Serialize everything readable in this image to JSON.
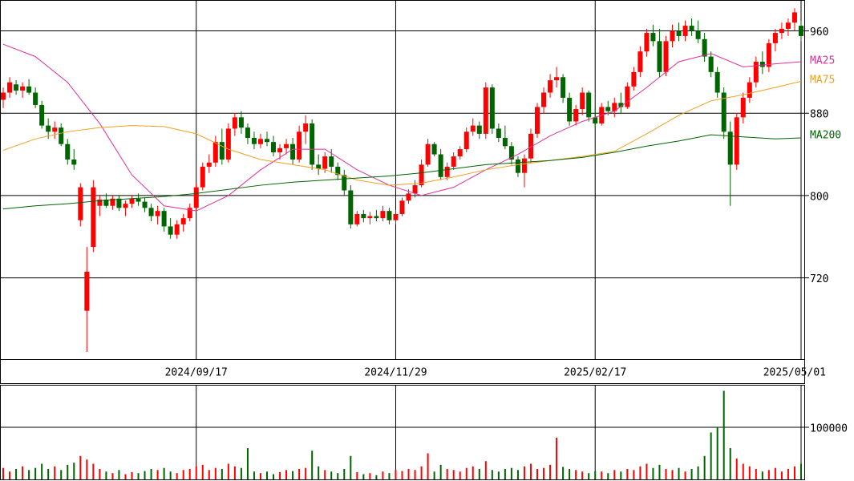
{
  "chart_data": [
    {
      "type": "candlestick",
      "up_color": "#ff0000",
      "down_color": "#006400",
      "xlim": [
        -0.5,
        124.5
      ],
      "xticks": [
        {
          "value": 30,
          "label": "2024/09/17"
        },
        {
          "value": 61,
          "label": "2024/11/29"
        },
        {
          "value": 92,
          "label": "2025/02/17"
        },
        {
          "value": 124,
          "label": "2025/05/01"
        }
      ],
      "ylim": [
        641,
        990
      ],
      "yticks": [
        720,
        800,
        880,
        960
      ],
      "grid": true,
      "ohlc": [
        [
          893,
          905,
          885,
          900
        ],
        [
          900,
          915,
          895,
          910
        ],
        [
          908,
          912,
          898,
          902
        ],
        [
          902,
          910,
          895,
          906
        ],
        [
          906,
          913,
          898,
          900
        ],
        [
          900,
          905,
          885,
          888
        ],
        [
          888,
          892,
          865,
          868
        ],
        [
          868,
          875,
          855,
          862
        ],
        [
          862,
          872,
          855,
          866
        ],
        [
          866,
          870,
          848,
          850
        ],
        [
          850,
          855,
          830,
          835
        ],
        [
          835,
          845,
          825,
          830
        ],
        [
          776,
          812,
          770,
          808
        ],
        [
          688,
          750,
          648,
          726
        ],
        [
          750,
          815,
          745,
          808
        ],
        [
          790,
          800,
          780,
          796
        ],
        [
          796,
          802,
          788,
          790
        ],
        [
          790,
          800,
          786,
          797
        ],
        [
          797,
          800,
          785,
          788
        ],
        [
          788,
          795,
          780,
          792
        ],
        [
          792,
          800,
          788,
          797
        ],
        [
          797,
          802,
          790,
          794
        ],
        [
          794,
          798,
          784,
          788
        ],
        [
          788,
          792,
          775,
          780
        ],
        [
          780,
          790,
          772,
          785
        ],
        [
          785,
          788,
          765,
          770
        ],
        [
          770,
          778,
          758,
          762
        ],
        [
          762,
          776,
          758,
          772
        ],
        [
          772,
          782,
          765,
          778
        ],
        [
          778,
          792,
          775,
          788
        ],
        [
          788,
          812,
          786,
          808
        ],
        [
          808,
          832,
          805,
          828
        ],
        [
          828,
          840,
          822,
          832
        ],
        [
          832,
          858,
          828,
          852
        ],
        [
          852,
          865,
          830,
          835
        ],
        [
          835,
          870,
          832,
          865
        ],
        [
          865,
          880,
          858,
          876
        ],
        [
          876,
          882,
          860,
          866
        ],
        [
          866,
          870,
          850,
          856
        ],
        [
          856,
          862,
          845,
          850
        ],
        [
          850,
          860,
          846,
          855
        ],
        [
          855,
          862,
          848,
          852
        ],
        [
          852,
          858,
          838,
          842
        ],
        [
          842,
          850,
          835,
          846
        ],
        [
          846,
          855,
          840,
          850
        ],
        [
          850,
          856,
          830,
          835
        ],
        [
          835,
          868,
          832,
          862
        ],
        [
          862,
          878,
          850,
          870
        ],
        [
          870,
          874,
          825,
          830
        ],
        [
          830,
          840,
          820,
          826
        ],
        [
          826,
          842,
          822,
          838
        ],
        [
          838,
          845,
          822,
          828
        ],
        [
          828,
          832,
          815,
          820
        ],
        [
          820,
          825,
          800,
          805
        ],
        [
          805,
          810,
          768,
          772
        ],
        [
          772,
          785,
          770,
          782
        ],
        [
          782,
          786,
          774,
          778
        ],
        [
          778,
          784,
          772,
          780
        ],
        [
          780,
          786,
          775,
          778
        ],
        [
          778,
          790,
          775,
          785
        ],
        [
          785,
          788,
          772,
          776
        ],
        [
          776,
          786,
          772,
          782
        ],
        [
          782,
          798,
          780,
          795
        ],
        [
          795,
          806,
          792,
          802
        ],
        [
          802,
          815,
          798,
          810
        ],
        [
          810,
          835,
          808,
          830
        ],
        [
          830,
          855,
          828,
          850
        ],
        [
          850,
          852,
          838,
          840
        ],
        [
          840,
          845,
          815,
          818
        ],
        [
          818,
          832,
          815,
          828
        ],
        [
          828,
          842,
          825,
          838
        ],
        [
          838,
          848,
          835,
          845
        ],
        [
          845,
          866,
          842,
          862
        ],
        [
          862,
          875,
          858,
          868
        ],
        [
          868,
          872,
          855,
          860
        ],
        [
          860,
          910,
          855,
          905
        ],
        [
          905,
          908,
          860,
          865
        ],
        [
          865,
          870,
          852,
          856
        ],
        [
          856,
          868,
          845,
          848
        ],
        [
          848,
          852,
          830,
          835
        ],
        [
          835,
          838,
          818,
          822
        ],
        [
          822,
          840,
          808,
          836
        ],
        [
          836,
          865,
          832,
          860
        ],
        [
          860,
          890,
          856,
          886
        ],
        [
          886,
          905,
          880,
          900
        ],
        [
          900,
          918,
          895,
          912
        ],
        [
          912,
          925,
          905,
          915
        ],
        [
          915,
          918,
          890,
          895
        ],
        [
          895,
          900,
          868,
          872
        ],
        [
          872,
          888,
          868,
          884
        ],
        [
          884,
          905,
          878,
          900
        ],
        [
          900,
          902,
          872,
          876
        ],
        [
          876,
          885,
          866,
          870
        ],
        [
          870,
          890,
          868,
          886
        ],
        [
          886,
          892,
          878,
          882
        ],
        [
          882,
          895,
          876,
          890
        ],
        [
          890,
          900,
          880,
          886
        ],
        [
          886,
          910,
          884,
          906
        ],
        [
          906,
          925,
          902,
          920
        ],
        [
          920,
          945,
          915,
          940
        ],
        [
          940,
          962,
          935,
          958
        ],
        [
          958,
          966,
          945,
          950
        ],
        [
          950,
          962,
          915,
          920
        ],
        [
          920,
          955,
          916,
          950
        ],
        [
          950,
          966,
          944,
          960
        ],
        [
          960,
          968,
          950,
          955
        ],
        [
          955,
          970,
          950,
          965
        ],
        [
          965,
          972,
          955,
          960
        ],
        [
          960,
          970,
          948,
          952
        ],
        [
          952,
          958,
          930,
          935
        ],
        [
          935,
          940,
          915,
          920
        ],
        [
          920,
          925,
          895,
          900
        ],
        [
          900,
          905,
          855,
          862
        ],
        [
          862,
          872,
          790,
          830
        ],
        [
          830,
          880,
          825,
          876
        ],
        [
          876,
          900,
          870,
          895
        ],
        [
          895,
          915,
          890,
          910
        ],
        [
          910,
          935,
          905,
          930
        ],
        [
          930,
          940,
          918,
          925
        ],
        [
          925,
          952,
          920,
          948
        ],
        [
          948,
          962,
          940,
          958
        ],
        [
          958,
          968,
          952,
          962
        ],
        [
          962,
          972,
          955,
          968
        ],
        [
          968,
          982,
          960,
          978
        ],
        [
          965,
          970,
          950,
          955
        ]
      ],
      "series": [
        {
          "name": "MA25",
          "color": "#e0309a",
          "x": [
            0,
            5,
            10,
            15,
            20,
            25,
            30,
            35,
            40,
            45,
            50,
            55,
            60,
            65,
            70,
            75,
            80,
            85,
            90,
            95,
            100,
            105,
            110,
            115,
            120,
            124
          ],
          "values": [
            947,
            935,
            910,
            870,
            820,
            790,
            785,
            800,
            825,
            845,
            845,
            825,
            810,
            800,
            808,
            825,
            840,
            858,
            872,
            882,
            905,
            930,
            938,
            925,
            928,
            930
          ]
        },
        {
          "name": "MA75",
          "color": "#f0a020",
          "x": [
            0,
            5,
            10,
            15,
            20,
            25,
            30,
            35,
            40,
            45,
            50,
            55,
            60,
            65,
            70,
            75,
            80,
            85,
            90,
            95,
            100,
            105,
            110,
            115,
            120,
            124
          ],
          "values": [
            844,
            855,
            862,
            866,
            868,
            867,
            860,
            845,
            835,
            830,
            825,
            815,
            810,
            812,
            818,
            825,
            830,
            834,
            838,
            843,
            860,
            878,
            892,
            898,
            905,
            911
          ]
        },
        {
          "name": "MA200",
          "color": "#006400",
          "x": [
            0,
            5,
            10,
            15,
            20,
            25,
            30,
            35,
            40,
            45,
            50,
            55,
            60,
            65,
            70,
            75,
            80,
            85,
            90,
            95,
            100,
            105,
            110,
            115,
            120,
            124
          ],
          "values": [
            787,
            790,
            792,
            795,
            797,
            799,
            802,
            806,
            810,
            813,
            815,
            817,
            819,
            822,
            826,
            830,
            832,
            834,
            837,
            842,
            848,
            853,
            859,
            857,
            855,
            856
          ]
        }
      ]
    },
    {
      "type": "bar",
      "ylim": [
        0,
        181500
      ],
      "yticks": [
        100000
      ],
      "grid": true,
      "values": [
        22000,
        15000,
        20000,
        25000,
        18000,
        22000,
        30000,
        20000,
        25000,
        18000,
        28000,
        32000,
        45000,
        38000,
        30000,
        20000,
        15000,
        12000,
        18000,
        10000,
        14000,
        12000,
        16000,
        20000,
        18000,
        22000,
        15000,
        12000,
        18000,
        20000,
        25000,
        28000,
        18000,
        22000,
        20000,
        30000,
        25000,
        22000,
        60000,
        15000,
        12000,
        15000,
        10000,
        14000,
        18000,
        16000,
        20000,
        22000,
        55000,
        25000,
        18000,
        15000,
        12000,
        20000,
        45000,
        14000,
        10000,
        12000,
        8000,
        15000,
        12000,
        18000,
        16000,
        20000,
        18000,
        25000,
        50000,
        15000,
        28000,
        20000,
        18000,
        15000,
        22000,
        25000,
        20000,
        35000,
        18000,
        15000,
        20000,
        22000,
        18000,
        25000,
        30000,
        20000,
        22000,
        28000,
        80000,
        24000,
        20000,
        18000,
        15000,
        12000,
        16000,
        15000,
        12000,
        18000,
        15000,
        20000,
        18000,
        25000,
        30000,
        22000,
        28000,
        20000,
        18000,
        22000,
        15000,
        20000,
        25000,
        45000,
        90000,
        100000,
        170000,
        60000,
        40000,
        30000,
        25000,
        20000,
        15000,
        18000,
        22000,
        15000,
        20000,
        25000,
        30000
      ]
    }
  ]
}
